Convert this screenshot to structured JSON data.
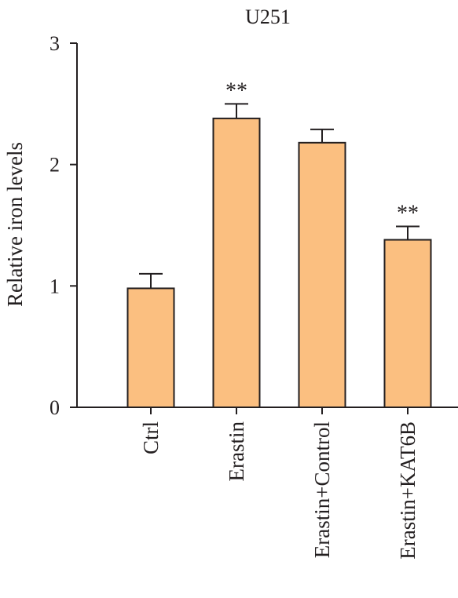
{
  "chart_data": {
    "type": "bar",
    "title": "U251",
    "xlabel": "",
    "ylabel": "Relative iron levels",
    "ylim": [
      0,
      3
    ],
    "yticks": [
      0,
      1,
      2,
      3
    ],
    "categories": [
      "Ctrl",
      "Erastin",
      "Erastin+Control",
      "Erastin+KAT6B"
    ],
    "values": [
      0.98,
      2.38,
      2.18,
      1.38
    ],
    "errors": [
      0.12,
      0.12,
      0.11,
      0.11
    ],
    "significance": [
      "",
      "**",
      "",
      "**"
    ],
    "bar_color": "#fbbf80",
    "grid": false,
    "legend": "none"
  }
}
